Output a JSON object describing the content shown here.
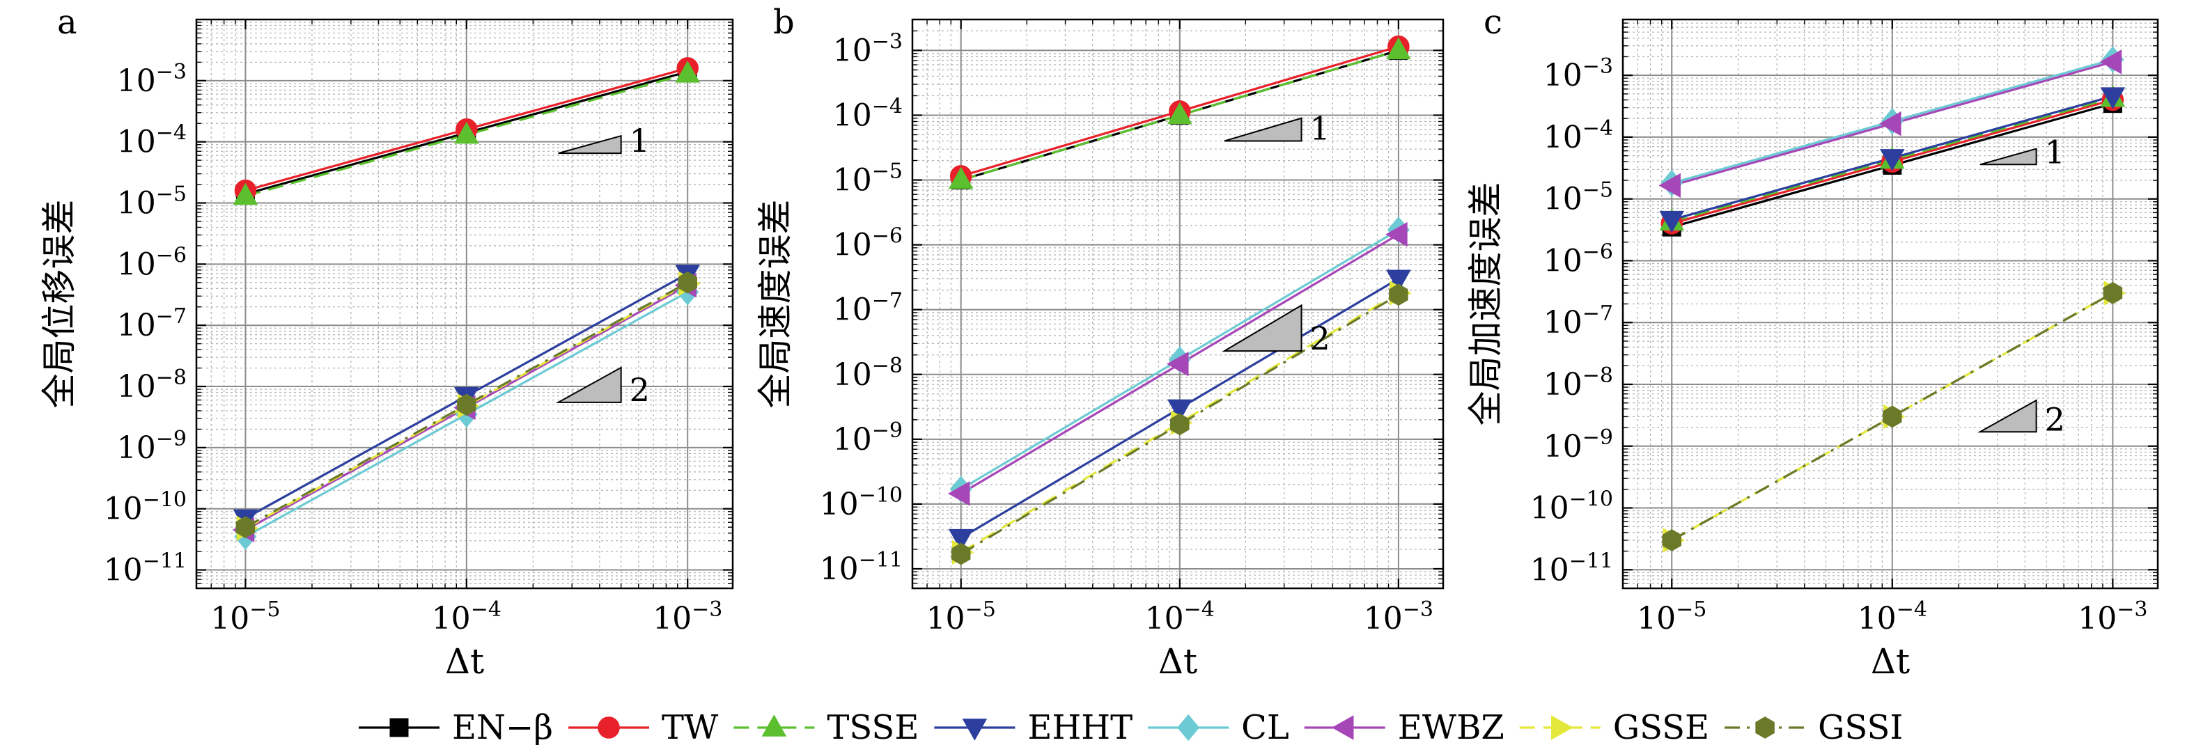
{
  "chart_data": [
    {
      "type": "line",
      "panel_label": "a",
      "xlabel": "Δt",
      "ylabel": "全局位移误差",
      "xscale": "log",
      "yscale": "log",
      "xlim": [
        6e-06,
        0.0016
      ],
      "ylim": [
        5e-12,
        0.01
      ],
      "grid": true,
      "x": [
        1e-05,
        0.0001,
        0.001
      ],
      "x_ticks": [
        {
          "mantissa": "10",
          "exp": "−5",
          "value": 1e-05
        },
        {
          "mantissa": "10",
          "exp": "−4",
          "value": 0.0001
        },
        {
          "mantissa": "10",
          "exp": "−3",
          "value": 0.001
        }
      ],
      "y_ticks": [
        {
          "mantissa": "10",
          "exp": "−11",
          "value": 1e-11
        },
        {
          "mantissa": "10",
          "exp": "−10",
          "value": 1e-10
        },
        {
          "mantissa": "10",
          "exp": "−9",
          "value": 1e-09
        },
        {
          "mantissa": "10",
          "exp": "−8",
          "value": 1e-08
        },
        {
          "mantissa": "10",
          "exp": "−7",
          "value": 1e-07
        },
        {
          "mantissa": "10",
          "exp": "−6",
          "value": 1e-06
        },
        {
          "mantissa": "10",
          "exp": "−5",
          "value": 1e-05
        },
        {
          "mantissa": "10",
          "exp": "−4",
          "value": 0.0001
        },
        {
          "mantissa": "10",
          "exp": "−3",
          "value": 0.001
        }
      ],
      "series": [
        {
          "key": "EN-beta",
          "values": [
            1.4e-05,
            0.00014,
            0.0014
          ]
        },
        {
          "key": "TW",
          "values": [
            1.6e-05,
            0.00016,
            0.0016
          ]
        },
        {
          "key": "TSSE",
          "values": [
            1.3e-05,
            0.00013,
            0.0013
          ]
        },
        {
          "key": "EHHT",
          "values": [
            7e-11,
            7e-09,
            7e-07
          ]
        },
        {
          "key": "CL",
          "values": [
            3.5e-11,
            3.5e-09,
            3.5e-07
          ]
        },
        {
          "key": "EWBZ",
          "values": [
            4.5e-11,
            4.5e-09,
            4.5e-07
          ]
        },
        {
          "key": "GSSE",
          "values": [
            4.8e-11,
            4.8e-09,
            4.8e-07
          ]
        },
        {
          "key": "GSSI",
          "values": [
            5e-11,
            5e-09,
            5e-07
          ]
        }
      ],
      "slope_triangles": [
        {
          "label": "1",
          "x0": 0.00026,
          "x1": 0.0005,
          "y0": 6.5e-05
        },
        {
          "label": "2",
          "x0": 0.00026,
          "x1": 0.0005,
          "y0": 5.5e-09
        }
      ]
    },
    {
      "type": "line",
      "panel_label": "b",
      "xlabel": "Δt",
      "ylabel": "全局速度误差",
      "xscale": "log",
      "yscale": "log",
      "xlim": [
        6e-06,
        0.0016
      ],
      "ylim": [
        5e-12,
        0.003
      ],
      "grid": true,
      "x": [
        1e-05,
        0.0001,
        0.001
      ],
      "x_ticks": [
        {
          "mantissa": "10",
          "exp": "−5",
          "value": 1e-05
        },
        {
          "mantissa": "10",
          "exp": "−4",
          "value": 0.0001
        },
        {
          "mantissa": "10",
          "exp": "−3",
          "value": 0.001
        }
      ],
      "y_ticks": [
        {
          "mantissa": "10",
          "exp": "−11",
          "value": 1e-11
        },
        {
          "mantissa": "10",
          "exp": "−10",
          "value": 1e-10
        },
        {
          "mantissa": "10",
          "exp": "−9",
          "value": 1e-09
        },
        {
          "mantissa": "10",
          "exp": "−8",
          "value": 1e-08
        },
        {
          "mantissa": "10",
          "exp": "−7",
          "value": 1e-07
        },
        {
          "mantissa": "10",
          "exp": "−6",
          "value": 1e-06
        },
        {
          "mantissa": "10",
          "exp": "−5",
          "value": 1e-05
        },
        {
          "mantissa": "10",
          "exp": "−4",
          "value": 0.0001
        },
        {
          "mantissa": "10",
          "exp": "−3",
          "value": 0.001
        }
      ],
      "series": [
        {
          "key": "EN-beta",
          "values": [
            1e-05,
            0.0001,
            0.001
          ]
        },
        {
          "key": "TW",
          "values": [
            1.15e-05,
            0.000115,
            0.00115
          ]
        },
        {
          "key": "TSSE",
          "values": [
            1e-05,
            0.0001,
            0.001
          ]
        },
        {
          "key": "EHHT",
          "values": [
            3e-11,
            3e-09,
            3e-07
          ]
        },
        {
          "key": "CL",
          "values": [
            1.7e-10,
            1.7e-08,
            1.7e-06
          ]
        },
        {
          "key": "EWBZ",
          "values": [
            1.45e-10,
            1.45e-08,
            1.45e-06
          ]
        },
        {
          "key": "GSSE",
          "values": [
            1.8e-11,
            1.8e-09,
            1.8e-07
          ]
        },
        {
          "key": "GSSI",
          "values": [
            1.7e-11,
            1.7e-09,
            1.7e-07
          ]
        }
      ],
      "slope_triangles": [
        {
          "label": "1",
          "x0": 0.00016,
          "x1": 0.00036,
          "y0": 4e-05
        },
        {
          "label": "2",
          "x0": 0.00016,
          "x1": 0.00036,
          "y0": 2.3e-08
        }
      ]
    },
    {
      "type": "line",
      "panel_label": "c",
      "xlabel": "Δt",
      "ylabel": "全局加速度误差",
      "xscale": "log",
      "yscale": "log",
      "xlim": [
        6e-06,
        0.0016
      ],
      "ylim": [
        5e-12,
        0.008
      ],
      "grid": true,
      "x": [
        1e-05,
        0.0001,
        0.001
      ],
      "x_ticks": [
        {
          "mantissa": "10",
          "exp": "−5",
          "value": 1e-05
        },
        {
          "mantissa": "10",
          "exp": "−4",
          "value": 0.0001
        },
        {
          "mantissa": "10",
          "exp": "−3",
          "value": 0.001
        }
      ],
      "y_ticks": [
        {
          "mantissa": "10",
          "exp": "−11",
          "value": 1e-11
        },
        {
          "mantissa": "10",
          "exp": "−10",
          "value": 1e-10
        },
        {
          "mantissa": "10",
          "exp": "−9",
          "value": 1e-09
        },
        {
          "mantissa": "10",
          "exp": "−8",
          "value": 1e-08
        },
        {
          "mantissa": "10",
          "exp": "−7",
          "value": 1e-07
        },
        {
          "mantissa": "10",
          "exp": "−6",
          "value": 1e-06
        },
        {
          "mantissa": "10",
          "exp": "−5",
          "value": 1e-05
        },
        {
          "mantissa": "10",
          "exp": "−4",
          "value": 0.0001
        },
        {
          "mantissa": "10",
          "exp": "−3",
          "value": 0.001
        }
      ],
      "series": [
        {
          "key": "EN-beta",
          "values": [
            3.5e-06,
            3.5e-05,
            0.00035
          ]
        },
        {
          "key": "TW",
          "values": [
            4e-06,
            4e-05,
            0.0004
          ]
        },
        {
          "key": "TSSE",
          "values": [
            4.3e-06,
            4.3e-05,
            0.00043
          ]
        },
        {
          "key": "EHHT",
          "values": [
            4.6e-06,
            4.6e-05,
            0.00046
          ]
        },
        {
          "key": "CL",
          "values": [
            1.8e-05,
            0.00018,
            0.0018
          ]
        },
        {
          "key": "EWBZ",
          "values": [
            1.65e-05,
            0.000165,
            0.00165
          ]
        },
        {
          "key": "GSSE",
          "values": [
            3e-11,
            3e-09,
            3e-07
          ]
        },
        {
          "key": "GSSI",
          "values": [
            3e-11,
            3e-09,
            3e-07
          ]
        }
      ],
      "slope_triangles": [
        {
          "label": "1",
          "x0": 0.00025,
          "x1": 0.00045,
          "y0": 3.6e-05
        },
        {
          "label": "2",
          "x0": 0.00025,
          "x1": 0.00045,
          "y0": 1.7e-09
        }
      ]
    }
  ],
  "legend": {
    "placement": "bottom-center",
    "entries": [
      {
        "key": "EN-beta",
        "label": "EN−β",
        "color": "#000000",
        "marker": "square",
        "dash": "solid"
      },
      {
        "key": "TW",
        "label": "TW",
        "color": "#e8202a",
        "marker": "circle",
        "dash": "solid"
      },
      {
        "key": "TSSE",
        "label": "TSSE",
        "color": "#5bbf2e",
        "marker": "triangle-up",
        "dash": "dashed"
      },
      {
        "key": "EHHT",
        "label": "EHHT",
        "color": "#2c3f9e",
        "marker": "triangle-down",
        "dash": "solid"
      },
      {
        "key": "CL",
        "label": "CL",
        "color": "#6ccad4",
        "marker": "diamond",
        "dash": "solid"
      },
      {
        "key": "EWBZ",
        "label": "EWBZ",
        "color": "#a647b8",
        "marker": "triangle-left",
        "dash": "solid"
      },
      {
        "key": "GSSE",
        "label": "GSSE",
        "color": "#e3e83a",
        "marker": "triangle-right",
        "dash": "dashed"
      },
      {
        "key": "GSSI",
        "label": "GSSI",
        "color": "#6b7a28",
        "marker": "hexagon",
        "dash": "dashdot"
      }
    ]
  }
}
